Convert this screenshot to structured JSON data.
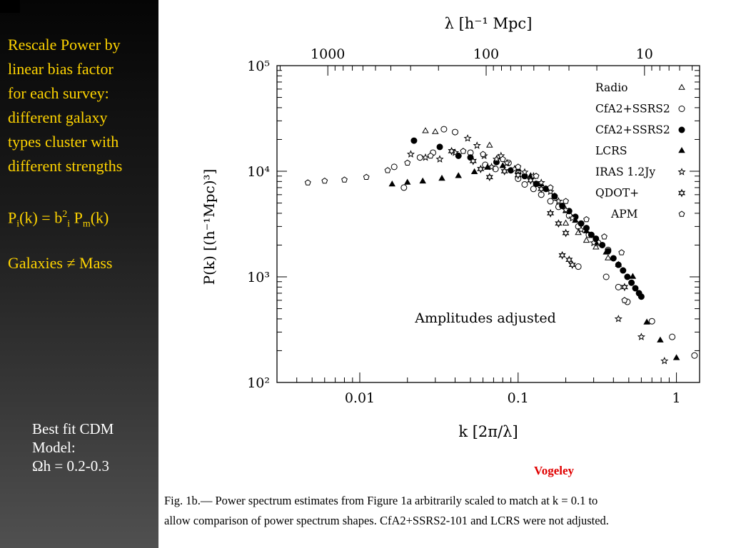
{
  "sidebar": {
    "bullet_lines": [
      "Rescale Power by",
      "linear bias factor",
      "for each survey:",
      "different galaxy",
      "types cluster with",
      "different strengths"
    ],
    "formula": {
      "lhs_main": "P",
      "lhs_sub": "i",
      "mid": "(k) = b",
      "b_sup": "2",
      "b_sub": "i",
      "space": " P",
      "pm_sub": "m",
      "end": "(k)"
    },
    "galaxies_text": "Galaxies ≠ Mass",
    "best_fit_lines": [
      "Best fit CDM",
      "Model:",
      "Ωh = 0.2-0.3"
    ],
    "accent_color": "#ffd400"
  },
  "credit": "Vogeley",
  "caption_lines": [
    "Fig. 1b.— Power spectrum estimates from Figure 1a arbitrarily scaled to match at k = 0.1 to",
    "allow comparison of power spectrum shapes.  CfA2+SSRS2-101 and LCRS were not adjusted."
  ],
  "chart_data": {
    "type": "scatter",
    "log_x": true,
    "log_y": true,
    "xlim": [
      0.003,
      1.4
    ],
    "ylim": [
      100,
      100000
    ],
    "xlabel": "k  [2π/λ]",
    "ylabel": "P(k)  [(h⁻¹Mpc)³]",
    "top_axis_label": "λ  [h⁻¹ Mpc]",
    "x_ticks": [
      "0.01",
      "0.1",
      "1"
    ],
    "x_tick_values": [
      0.01,
      0.1,
      1
    ],
    "top_ticks": [
      "1000",
      "100",
      "10"
    ],
    "top_tick_values": [
      1000,
      100,
      10
    ],
    "y_ticks": [
      "10²",
      "10³",
      "10⁴",
      "10⁵"
    ],
    "y_tick_values": [
      100,
      1000,
      10000,
      100000
    ],
    "annotation": "Amplitudes adjusted",
    "legend_position": "top-right",
    "series": [
      {
        "name": "Radio",
        "marker": "triangle-open",
        "points": [
          [
            0.026,
            24000
          ],
          [
            0.03,
            23500
          ],
          [
            0.066,
            17500
          ],
          [
            0.075,
            13500
          ],
          [
            0.1,
            10000
          ],
          [
            0.12,
            8800
          ],
          [
            0.15,
            6800
          ],
          [
            0.17,
            5500
          ],
          [
            0.2,
            3200
          ],
          [
            0.24,
            2600
          ],
          [
            0.27,
            2200
          ],
          [
            0.31,
            1900
          ],
          [
            0.37,
            1500
          ]
        ]
      },
      {
        "name": "CfA2+SSRS2",
        "marker": "circle-open",
        "points": [
          [
            0.0165,
            11000
          ],
          [
            0.019,
            7000
          ],
          [
            0.024,
            13500
          ],
          [
            0.029,
            15000
          ],
          [
            0.034,
            25000
          ],
          [
            0.04,
            23500
          ],
          [
            0.05,
            15000
          ],
          [
            0.062,
            11500
          ],
          [
            0.072,
            10500
          ],
          [
            0.087,
            12000
          ],
          [
            0.1,
            8500
          ],
          [
            0.11,
            7500
          ],
          [
            0.125,
            6800
          ],
          [
            0.14,
            6000
          ],
          [
            0.16,
            5200
          ],
          [
            0.18,
            4600
          ],
          [
            0.21,
            3800
          ],
          [
            0.24,
            3000
          ],
          [
            0.28,
            2500
          ],
          [
            0.32,
            2100
          ],
          [
            0.37,
            1800
          ],
          [
            0.24,
            1250
          ],
          [
            0.36,
            1000
          ],
          [
            0.43,
            800
          ],
          [
            0.49,
            580
          ],
          [
            0.7,
            380
          ],
          [
            0.94,
            270
          ],
          [
            1.3,
            180
          ]
        ]
      },
      {
        "name": "CfA2+SSRS2",
        "marker": "circle-filled",
        "points": [
          [
            0.022,
            19500
          ],
          [
            0.032,
            17000
          ],
          [
            0.042,
            14000
          ],
          [
            0.05,
            13500
          ],
          [
            0.073,
            12200
          ],
          [
            0.09,
            10200
          ],
          [
            0.11,
            9000
          ],
          [
            0.13,
            7600
          ],
          [
            0.15,
            6800
          ],
          [
            0.17,
            5800
          ],
          [
            0.19,
            4700
          ],
          [
            0.21,
            4200
          ],
          [
            0.23,
            3700
          ],
          [
            0.25,
            3200
          ],
          [
            0.27,
            2900
          ],
          [
            0.29,
            2500
          ],
          [
            0.31,
            2300
          ],
          [
            0.34,
            2000
          ],
          [
            0.37,
            1750
          ],
          [
            0.4,
            1500
          ],
          [
            0.43,
            1300
          ],
          [
            0.46,
            1150
          ],
          [
            0.49,
            1000
          ],
          [
            0.52,
            880
          ],
          [
            0.55,
            780
          ],
          [
            0.58,
            700
          ],
          [
            0.6,
            650
          ]
        ]
      },
      {
        "name": "LCRS",
        "marker": "triangle-filled",
        "points": [
          [
            0.016,
            7500
          ],
          [
            0.02,
            7800
          ],
          [
            0.025,
            8000
          ],
          [
            0.033,
            8500
          ],
          [
            0.042,
            9000
          ],
          [
            0.053,
            9800
          ],
          [
            0.064,
            10800
          ],
          [
            0.08,
            11200
          ],
          [
            0.1,
            10500
          ],
          [
            0.12,
            9000
          ],
          [
            0.14,
            7500
          ],
          [
            0.17,
            5800
          ],
          [
            0.2,
            4200
          ],
          [
            0.23,
            3400
          ],
          [
            0.27,
            2700
          ],
          [
            0.31,
            2100
          ],
          [
            0.36,
            1700
          ],
          [
            0.43,
            1300
          ],
          [
            0.53,
            1000
          ],
          [
            0.65,
            370
          ],
          [
            0.79,
            250
          ],
          [
            1.0,
            170
          ]
        ]
      },
      {
        "name": "IRAS 1.2Jy",
        "marker": "star5",
        "points": [
          [
            0.021,
            14500
          ],
          [
            0.026,
            13500
          ],
          [
            0.032,
            13000
          ],
          [
            0.04,
            15000
          ],
          [
            0.048,
            20500
          ],
          [
            0.055,
            17500
          ],
          [
            0.061,
            14000
          ],
          [
            0.068,
            11000
          ],
          [
            0.073,
            13000
          ],
          [
            0.078,
            14000
          ],
          [
            0.085,
            12000
          ],
          [
            0.095,
            10500
          ],
          [
            0.11,
            9800
          ],
          [
            0.125,
            9000
          ],
          [
            0.14,
            7800
          ],
          [
            0.16,
            6400
          ],
          [
            0.18,
            5200
          ],
          [
            0.2,
            4300
          ],
          [
            0.22,
            3600
          ],
          [
            0.25,
            2800
          ],
          [
            0.3,
            2100
          ],
          [
            0.43,
            400
          ],
          [
            0.6,
            270
          ],
          [
            0.84,
            160
          ]
        ]
      },
      {
        "name": "QDOT+",
        "marker": "star6",
        "points": [
          [
            0.038,
            15500
          ],
          [
            0.052,
            12500
          ],
          [
            0.058,
            10500
          ],
          [
            0.066,
            8800
          ],
          [
            0.082,
            10000
          ],
          [
            0.1,
            9200
          ],
          [
            0.12,
            8200
          ],
          [
            0.14,
            6800
          ],
          [
            0.16,
            4000
          ],
          [
            0.18,
            3200
          ],
          [
            0.2,
            2600
          ],
          [
            0.19,
            1600
          ],
          [
            0.22,
            1300
          ],
          [
            0.21,
            1450
          ],
          [
            0.47,
            800
          ]
        ]
      },
      {
        "name": "APM",
        "marker": "pentagon-open",
        "points": [
          [
            0.0047,
            7800
          ],
          [
            0.006,
            8100
          ],
          [
            0.008,
            8300
          ],
          [
            0.011,
            8800
          ],
          [
            0.015,
            10200
          ],
          [
            0.02,
            12000
          ],
          [
            0.028,
            14000
          ],
          [
            0.045,
            15500
          ],
          [
            0.06,
            14500
          ],
          [
            0.08,
            13000
          ],
          [
            0.1,
            11000
          ],
          [
            0.13,
            9000
          ],
          [
            0.16,
            7000
          ],
          [
            0.2,
            5200
          ],
          [
            0.27,
            3500
          ],
          [
            0.35,
            2400
          ],
          [
            0.45,
            1700
          ],
          [
            0.47,
            600
          ]
        ]
      }
    ]
  }
}
